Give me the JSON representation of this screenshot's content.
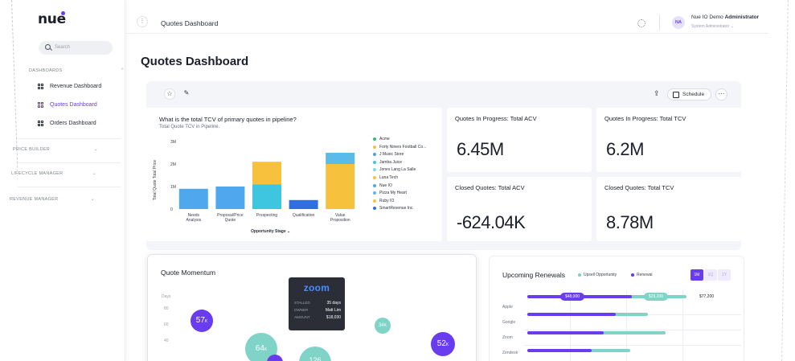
{
  "app": {
    "logo": "nue"
  },
  "sidebar": {
    "search_placeholder": "Search",
    "sections": {
      "dashboards": "DASHBOARDS",
      "price_builder": "PRICE BUILDER",
      "lifecycle_manager": "LIFECYCLE MANAGER",
      "revenue_manager": "REVENUE MANAGER"
    },
    "items": [
      {
        "label": "Revenue Dashboard",
        "active": false
      },
      {
        "label": "Quotes Dashboard",
        "active": true
      },
      {
        "label": "Orders Dashboard",
        "active": false
      }
    ]
  },
  "topbar": {
    "breadcrumb": "Quotes Dashboard",
    "avatar_initials": "NA",
    "user_name_prefix": "Nue IO Demo",
    "user_name_bold": "Administrator",
    "user_role": "System Administrator"
  },
  "page": {
    "title": "Quotes Dashboard"
  },
  "toolbar": {
    "schedule_label": "Schedule",
    "more_label": "···",
    "export_icon": "⇪"
  },
  "chart_card": {
    "title": "What is the total TCV of primary quotes in pipeline?",
    "subtitle": "Total Quote TCV in Pipeline."
  },
  "chart_data": {
    "type": "bar",
    "stacked": true,
    "title": "What is the total TCV of primary quotes in pipeline?",
    "subtitle": "Total Quote TCV in Pipeline.",
    "xlabel": "Opportunity Stage",
    "ylabel": "Total Quote Total Price",
    "ylim": [
      0,
      3000000
    ],
    "yticks": [
      "0",
      "1M",
      "2M",
      "3M"
    ],
    "categories": [
      "Needs Analysis",
      "Proposal/Price Quote",
      "Prospecting",
      "Qualification",
      "Value Proposition"
    ],
    "series": [
      {
        "name": "Acme",
        "color": "#2fbf71",
        "values": [
          0,
          0,
          0,
          0,
          0
        ]
      },
      {
        "name": "Forty Niners Football Co...",
        "color": "#f6c23e",
        "values": [
          0,
          0,
          0,
          0,
          0
        ]
      },
      {
        "name": "J Music Store",
        "color": "#4aa3df",
        "values": [
          0,
          0,
          0,
          0,
          0
        ]
      },
      {
        "name": "Jamba Juice",
        "color": "#3ec6e0",
        "values": [
          0,
          0,
          1100000,
          0,
          0
        ]
      },
      {
        "name": "Jones Lang La Salle",
        "color": "#7fd8ea",
        "values": [
          0,
          0,
          0,
          0,
          0
        ]
      },
      {
        "name": "Luna Tech",
        "color": "#f6c23e",
        "values": [
          0,
          0,
          1000000,
          0,
          2000000
        ]
      },
      {
        "name": "Nue IO",
        "color": "#4fa8ee",
        "values": [
          900000,
          1000000,
          0,
          0,
          0
        ]
      },
      {
        "name": "Pizza My Heart",
        "color": "#5bbbe8",
        "values": [
          0,
          0,
          0,
          0,
          500000
        ]
      },
      {
        "name": "Ruby IO",
        "color": "#f6c23e",
        "values": [
          0,
          0,
          0,
          0,
          0
        ]
      },
      {
        "name": "SmartRevenue Inc.",
        "color": "#2f6fe0",
        "values": [
          0,
          0,
          0,
          400000,
          0
        ]
      }
    ],
    "legend_position": "right",
    "grid": false
  },
  "kpis": [
    {
      "title": "Quotes In Progress: Total ACV",
      "value": "6.45M"
    },
    {
      "title": "Quotes In Progress: Total TCV",
      "value": "6.2M"
    },
    {
      "title": "Closed Quotes: Total ACV",
      "value": "-624.04K"
    },
    {
      "title": "Closed Quotes: Total TCV",
      "value": "8.78M"
    }
  ],
  "momentum": {
    "title": "Quote Momentum",
    "axis_label": "Days",
    "ticks": [
      "80",
      "60",
      "40"
    ],
    "bubbles": [
      {
        "value": "57",
        "suffix": "K",
        "color": "#6a3cf0"
      },
      {
        "value": "64",
        "suffix": "K",
        "color": "#7fd3c7"
      },
      {
        "value": "34",
        "suffix": "K",
        "color": "#7fd3c7"
      },
      {
        "value": "52",
        "suffix": "K",
        "color": "#6a3cf0"
      },
      {
        "value": "",
        "suffix": "",
        "color": "#6a3cf0"
      },
      {
        "value": "126",
        "suffix": "",
        "color": "#7fd3c7"
      }
    ],
    "tooltip": {
      "logo": "zoom",
      "rows": [
        {
          "k": "STALLED",
          "v": "35 days"
        },
        {
          "k": "OWNER",
          "v": "Matt Lim"
        },
        {
          "k": "AMOUNT",
          "v": "$18,030"
        }
      ]
    }
  },
  "renewals": {
    "title": "Upcoming Renewals",
    "legend": [
      {
        "label": "Upsell Opportunity",
        "color": "#7fd3c7"
      },
      {
        "label": "Renewal",
        "color": "#6a3cf0"
      }
    ],
    "periods": [
      {
        "label": "1M",
        "active": true
      },
      {
        "label": "1Q",
        "active": false
      },
      {
        "label": "1Y",
        "active": false
      }
    ],
    "rows": [
      "Apple",
      "Google",
      "Zoom",
      "Zendesk"
    ],
    "labels": [
      "$48,000",
      "$29,200",
      "$77,200"
    ]
  }
}
